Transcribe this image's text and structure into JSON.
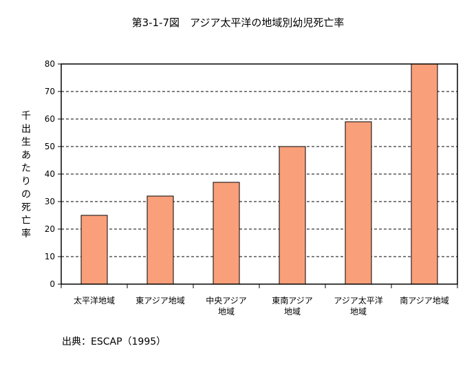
{
  "chart_data": {
    "type": "bar",
    "title": "第3-1-7図　アジア太平洋の地域別幼児死亡率",
    "ylabel": "千出生あたりの死亡率",
    "xlabel": "",
    "ylim": [
      0,
      80
    ],
    "yticks": [
      0,
      10,
      20,
      30,
      40,
      50,
      60,
      70,
      80
    ],
    "grid": true,
    "categories": [
      [
        "太平洋地域"
      ],
      [
        "東アジア地域"
      ],
      [
        "中央アジア",
        "地域"
      ],
      [
        "東南アジア",
        "地域"
      ],
      [
        "アジア太平洋",
        "地域"
      ],
      [
        "南アジア地域"
      ]
    ],
    "values": [
      25,
      32,
      37,
      50,
      59,
      80
    ],
    "bar_color": "#f9a07a",
    "bar_stroke": "#000000"
  },
  "source": "出典：ESCAP（1995）"
}
